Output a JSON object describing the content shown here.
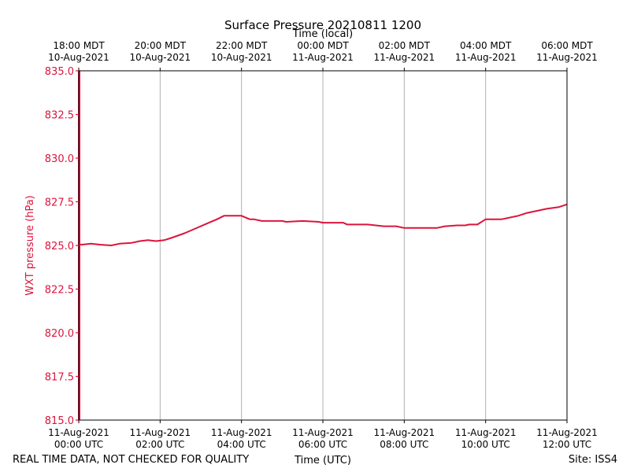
{
  "chart_data": {
    "type": "line",
    "title": "Surface Pressure 20210811 1200",
    "xlabel": "Time (UTC)",
    "xlabel_top": "Time (local)",
    "ylabel": "WXT pressure (hPa)",
    "ylim": [
      815.0,
      835.0
    ],
    "xlim_hours": [
      0,
      12
    ],
    "yticks": [
      "815.0",
      "817.5",
      "820.0",
      "822.5",
      "825.0",
      "827.5",
      "830.0",
      "832.5",
      "835.0"
    ],
    "xticks_bottom": [
      {
        "hour": 0,
        "line1": "11-Aug-2021",
        "line2": "00:00 UTC"
      },
      {
        "hour": 2,
        "line1": "11-Aug-2021",
        "line2": "02:00 UTC"
      },
      {
        "hour": 4,
        "line1": "11-Aug-2021",
        "line2": "04:00 UTC"
      },
      {
        "hour": 6,
        "line1": "11-Aug-2021",
        "line2": "06:00 UTC"
      },
      {
        "hour": 8,
        "line1": "11-Aug-2021",
        "line2": "08:00 UTC"
      },
      {
        "hour": 10,
        "line1": "11-Aug-2021",
        "line2": "10:00 UTC"
      },
      {
        "hour": 12,
        "line1": "11-Aug-2021",
        "line2": "12:00 UTC"
      }
    ],
    "xticks_top": [
      {
        "hour": 0,
        "line1": "18:00 MDT",
        "line2": "10-Aug-2021"
      },
      {
        "hour": 2,
        "line1": "20:00 MDT",
        "line2": "10-Aug-2021"
      },
      {
        "hour": 4,
        "line1": "22:00 MDT",
        "line2": "10-Aug-2021"
      },
      {
        "hour": 6,
        "line1": "00:00 MDT",
        "line2": "11-Aug-2021"
      },
      {
        "hour": 8,
        "line1": "02:00 MDT",
        "line2": "11-Aug-2021"
      },
      {
        "hour": 10,
        "line1": "04:00 MDT",
        "line2": "11-Aug-2021"
      },
      {
        "hour": 12,
        "line1": "06:00 MDT",
        "line2": "11-Aug-2021"
      }
    ],
    "series": [
      {
        "name": "WXT pressure",
        "color": "#dc143c",
        "initial_spike": {
          "x": 0.0,
          "y_from": 815.0,
          "y_to": 835.0
        },
        "x": [
          0.0,
          0.1,
          0.3,
          0.5,
          0.8,
          1.0,
          1.3,
          1.5,
          1.7,
          1.9,
          2.1,
          2.3,
          2.6,
          2.8,
          3.0,
          3.2,
          3.4,
          3.57,
          4.0,
          4.2,
          4.3,
          4.5,
          4.6,
          5.0,
          5.1,
          5.5,
          5.9,
          6.0,
          6.4,
          6.5,
          6.6,
          7.0,
          7.1,
          7.5,
          7.8,
          8.0,
          8.4,
          8.8,
          9.0,
          9.3,
          9.5,
          9.6,
          9.8,
          10.0,
          10.2,
          10.4,
          10.6,
          10.8,
          11.0,
          11.3,
          11.5,
          11.8,
          12.0
        ],
        "y": [
          825.05,
          825.05,
          825.1,
          825.05,
          825.0,
          825.1,
          825.15,
          825.25,
          825.3,
          825.25,
          825.3,
          825.45,
          825.7,
          825.9,
          826.1,
          826.3,
          826.5,
          826.7,
          826.7,
          826.5,
          826.5,
          826.4,
          826.4,
          826.4,
          826.35,
          826.4,
          826.35,
          826.3,
          826.3,
          826.3,
          826.2,
          826.2,
          826.2,
          826.1,
          826.1,
          826.0,
          826.0,
          826.0,
          826.1,
          826.15,
          826.15,
          826.2,
          826.2,
          826.5,
          826.5,
          826.5,
          826.6,
          826.7,
          826.85,
          827.0,
          827.1,
          827.2,
          827.35
        ]
      }
    ]
  },
  "footer": {
    "quality_note": "REAL TIME DATA, NOT CHECKED FOR QUALITY",
    "site": "Site: ISS4"
  }
}
